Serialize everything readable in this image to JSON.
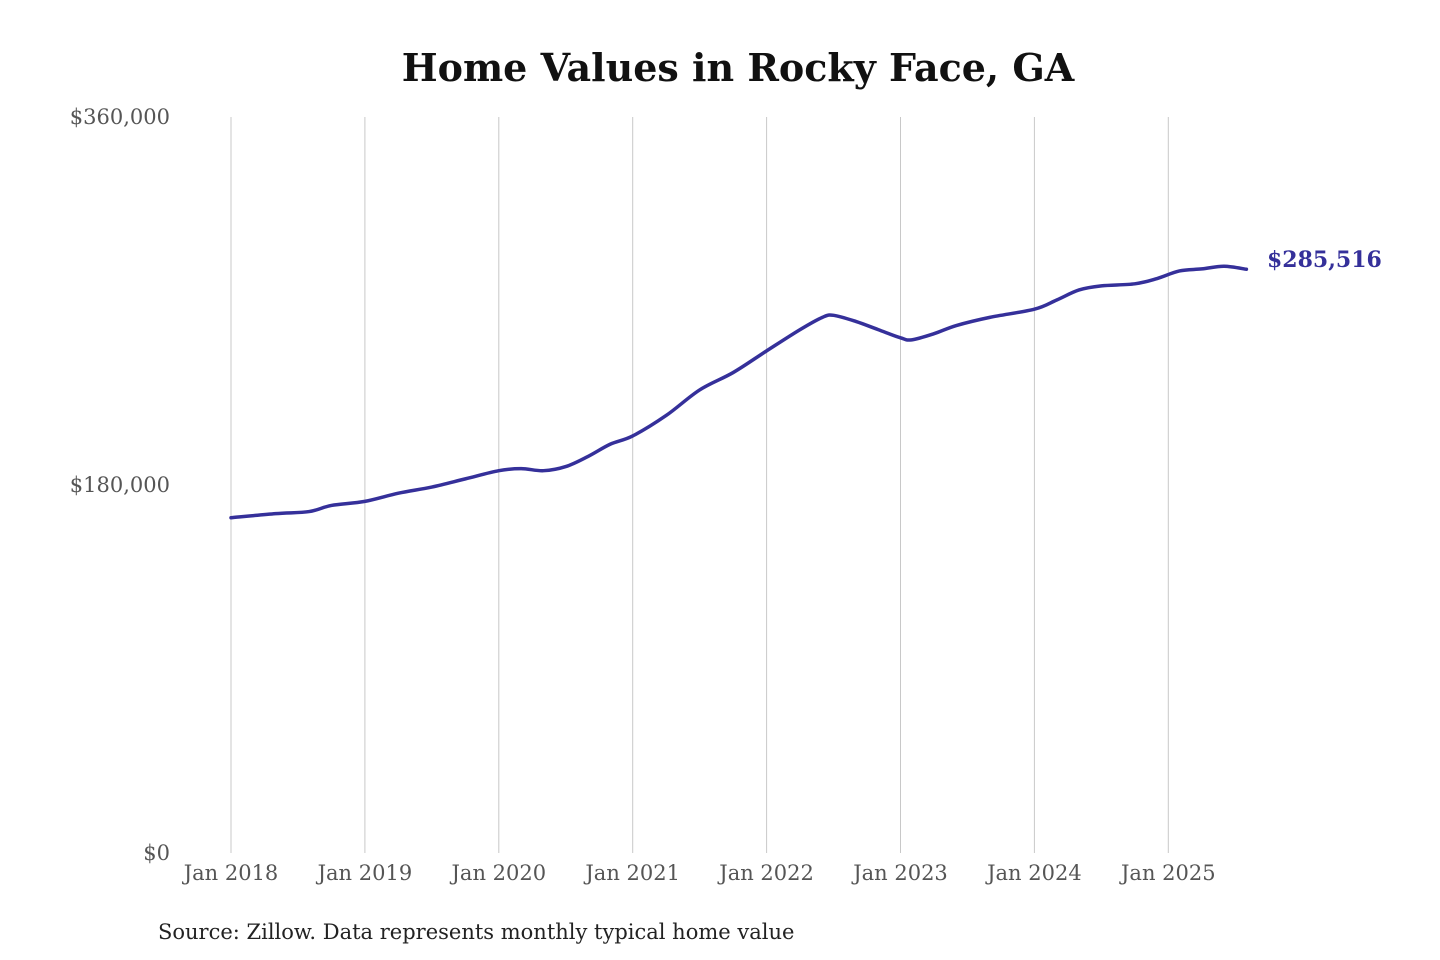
{
  "chart_data": {
    "type": "line",
    "title": "Home Values in Rocky Face, GA",
    "source": "Source: Zillow. Data represents monthly typical home value",
    "ylim": [
      0,
      360000
    ],
    "y_ticks": [
      0,
      180000,
      360000
    ],
    "y_tick_labels": [
      "$0",
      "$180,000",
      "$360,000"
    ],
    "x_tick_labels": [
      "Jan 2018",
      "Jan 2019",
      "Jan 2020",
      "Jan 2021",
      "Jan 2022",
      "Jan 2023",
      "Jan 2024",
      "Jan 2025"
    ],
    "grid": "vertical",
    "line_color": "#35309a",
    "end_label": "$285,516",
    "series": [
      {
        "x": [
          "2018-01",
          "2018-05",
          "2018-08",
          "2018-10",
          "2019-01",
          "2019-04",
          "2019-07",
          "2019-10",
          "2020-01",
          "2020-03",
          "2020-05",
          "2020-07",
          "2020-09",
          "2020-11",
          "2021-01",
          "2021-04",
          "2021-07",
          "2021-10",
          "2022-01",
          "2022-04",
          "2022-06",
          "2022-07",
          "2022-09",
          "2022-11",
          "2023-01",
          "2023-02",
          "2023-04",
          "2023-06",
          "2023-09",
          "2024-01",
          "2024-03",
          "2024-05",
          "2024-07",
          "2024-10",
          "2024-12",
          "2025-02",
          "2025-04",
          "2025-06",
          "2025-08"
        ],
        "values": [
          164000,
          166000,
          167000,
          170000,
          172000,
          176000,
          179000,
          183000,
          187000,
          188000,
          187000,
          189000,
          194000,
          200000,
          204000,
          214000,
          226500,
          235000,
          245600,
          256000,
          262000,
          263000,
          260000,
          256000,
          252000,
          251000,
          254000,
          258000,
          262000,
          266000,
          270500,
          275400,
          277400,
          278400,
          281000,
          284700,
          285700,
          287000,
          285516
        ]
      }
    ]
  }
}
